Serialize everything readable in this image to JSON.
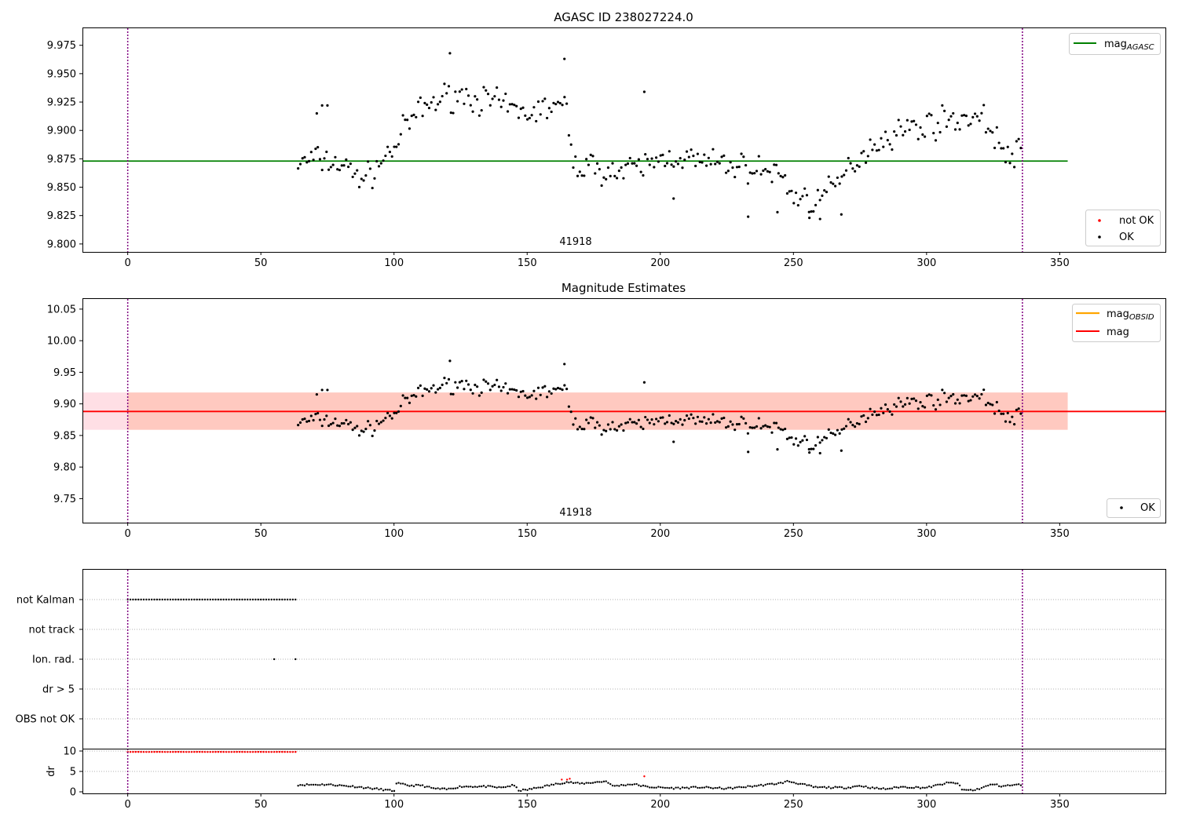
{
  "chart_data": [
    {
      "type": "scatter",
      "panel": "top",
      "title": "AGASC ID 238027224.0",
      "xlim": [
        -17,
        390
      ],
      "ylim": [
        9.793,
        9.99
      ],
      "xticks": [
        "0",
        "50",
        "100",
        "150",
        "200",
        "250",
        "300",
        "350"
      ],
      "yticks": [
        "9.800",
        "9.825",
        "9.850",
        "9.875",
        "9.900",
        "9.925",
        "9.950",
        "9.975"
      ],
      "obsid_label": "41918",
      "obsid_label_x": 168,
      "obs_bounds": [
        0,
        336
      ],
      "hline": {
        "name": "mag_AGASC",
        "value": 9.873,
        "x_range": [
          -17,
          353
        ],
        "color": "#008000"
      },
      "legend_line": {
        "label": "mag",
        "subscript": "AGASC"
      },
      "legend_points": [
        {
          "label": "not OK",
          "color": "#ff0000"
        },
        {
          "label": "OK",
          "color": "#000000"
        }
      ],
      "series": [
        {
          "name": "OK",
          "color": "#000000",
          "x_start": 64,
          "x_end": 336,
          "noise_seed": 7,
          "noise_amp": 0.018,
          "anchors": [
            [
              64,
              9.87
            ],
            [
              70,
              9.875
            ],
            [
              75,
              9.873
            ],
            [
              80,
              9.87
            ],
            [
              85,
              9.862
            ],
            [
              90,
              9.858
            ],
            [
              95,
              9.872
            ],
            [
              100,
              9.885
            ],
            [
              105,
              9.905
            ],
            [
              110,
              9.918
            ],
            [
              115,
              9.925
            ],
            [
              120,
              9.93
            ],
            [
              125,
              9.932
            ],
            [
              130,
              9.928
            ],
            [
              135,
              9.926
            ],
            [
              140,
              9.922
            ],
            [
              145,
              9.918
            ],
            [
              150,
              9.915
            ],
            [
              155,
              9.918
            ],
            [
              160,
              9.922
            ],
            [
              165,
              9.918
            ],
            [
              167,
              9.87
            ],
            [
              175,
              9.868
            ],
            [
              185,
              9.862
            ],
            [
              195,
              9.87
            ],
            [
              205,
              9.878
            ],
            [
              215,
              9.872
            ],
            [
              225,
              9.87
            ],
            [
              235,
              9.866
            ],
            [
              245,
              9.862
            ],
            [
              250,
              9.842
            ],
            [
              258,
              9.838
            ],
            [
              265,
              9.848
            ],
            [
              272,
              9.87
            ],
            [
              280,
              9.888
            ],
            [
              290,
              9.9
            ],
            [
              300,
              9.905
            ],
            [
              310,
              9.91
            ],
            [
              320,
              9.912
            ],
            [
              325,
              9.9
            ],
            [
              330,
              9.875
            ],
            [
              336,
              9.882
            ]
          ],
          "spikes": [
            [
              121,
              9.968
            ],
            [
              164,
              9.963
            ],
            [
              194,
              9.934
            ],
            [
              205,
              9.84
            ],
            [
              233,
              9.824
            ],
            [
              244,
              9.828
            ],
            [
              256,
              9.823
            ],
            [
              260,
              9.822
            ],
            [
              268,
              9.826
            ],
            [
              71,
              9.915
            ],
            [
              73,
              9.922
            ],
            [
              75,
              9.922
            ]
          ]
        }
      ]
    },
    {
      "type": "scatter",
      "panel": "middle",
      "title": "Magnitude Estimates",
      "xlim": [
        -17,
        390
      ],
      "ylim": [
        9.712,
        10.066
      ],
      "xticks": [
        "0",
        "50",
        "100",
        "150",
        "200",
        "250",
        "300",
        "350"
      ],
      "yticks": [
        "9.75",
        "9.80",
        "9.85",
        "9.90",
        "9.95",
        "10.00",
        "10.05"
      ],
      "obsid_label": "41918",
      "obs_bounds": [
        0,
        336
      ],
      "mag": 9.888,
      "mag_band": [
        9.859,
        9.918
      ],
      "mag_color": "#ff0000",
      "mag_obsid_color": "#ffa500",
      "legend_lines": [
        {
          "label": "mag",
          "subscript": "OBSID",
          "color": "#ffa500"
        },
        {
          "label": "mag",
          "subscript": "",
          "color": "#ff0000"
        }
      ],
      "legend_points": [
        {
          "label": "OK",
          "color": "#000000"
        }
      ]
    },
    {
      "type": "scatter",
      "panel": "flags",
      "xlim": [
        -17,
        390
      ],
      "categories": [
        "not Kalman",
        "not track",
        "Ion. rad.",
        "dr > 5",
        "OBS not OK"
      ],
      "flags": {
        "not Kalman": {
          "x_start": 0,
          "x_end": 63,
          "step": 1
        },
        "Ion. rad.": {
          "points": [
            55,
            63
          ]
        }
      }
    },
    {
      "type": "scatter",
      "panel": "dr",
      "ylabel": "dr",
      "xlim": [
        -17,
        390
      ],
      "ylim": [
        -0.5,
        10.5
      ],
      "xticks": [
        "0",
        "50",
        "100",
        "150",
        "200",
        "250",
        "300",
        "350"
      ],
      "yticks": [
        "0",
        "5",
        "10"
      ],
      "red_at_10": {
        "x_start": 0,
        "x_end": 63,
        "step": 1,
        "value": 9.8
      },
      "red_outliers": [
        [
          163,
          3.0
        ],
        [
          165,
          3.0
        ],
        [
          166,
          3.2
        ],
        [
          194,
          3.8
        ]
      ],
      "anchors": [
        [
          64,
          1.7
        ],
        [
          75,
          1.8
        ],
        [
          85,
          1.3
        ],
        [
          95,
          0.6
        ],
        [
          100,
          0.2
        ],
        [
          101,
          2.1
        ],
        [
          106,
          1.5
        ],
        [
          110,
          1.6
        ],
        [
          115,
          0.8
        ],
        [
          120,
          0.6
        ],
        [
          125,
          1.3
        ],
        [
          135,
          1.3
        ],
        [
          140,
          1.0
        ],
        [
          145,
          1.6
        ],
        [
          147,
          0.3
        ],
        [
          150,
          0.5
        ],
        [
          160,
          1.8
        ],
        [
          165,
          2.4
        ],
        [
          170,
          2.0
        ],
        [
          180,
          2.6
        ],
        [
          182,
          1.4
        ],
        [
          190,
          1.9
        ],
        [
          195,
          1.2
        ],
        [
          205,
          0.9
        ],
        [
          215,
          1.1
        ],
        [
          225,
          0.8
        ],
        [
          235,
          1.4
        ],
        [
          245,
          2.1
        ],
        [
          248,
          2.6
        ],
        [
          255,
          1.6
        ],
        [
          258,
          1.1
        ],
        [
          270,
          1.0
        ],
        [
          275,
          1.5
        ],
        [
          280,
          0.9
        ],
        [
          285,
          0.7
        ],
        [
          290,
          1.2
        ],
        [
          300,
          1.0
        ],
        [
          308,
          2.2
        ],
        [
          312,
          2.1
        ],
        [
          313,
          0.5
        ],
        [
          318,
          0.4
        ],
        [
          325,
          1.9
        ],
        [
          328,
          1.4
        ],
        [
          336,
          1.8
        ]
      ]
    }
  ]
}
